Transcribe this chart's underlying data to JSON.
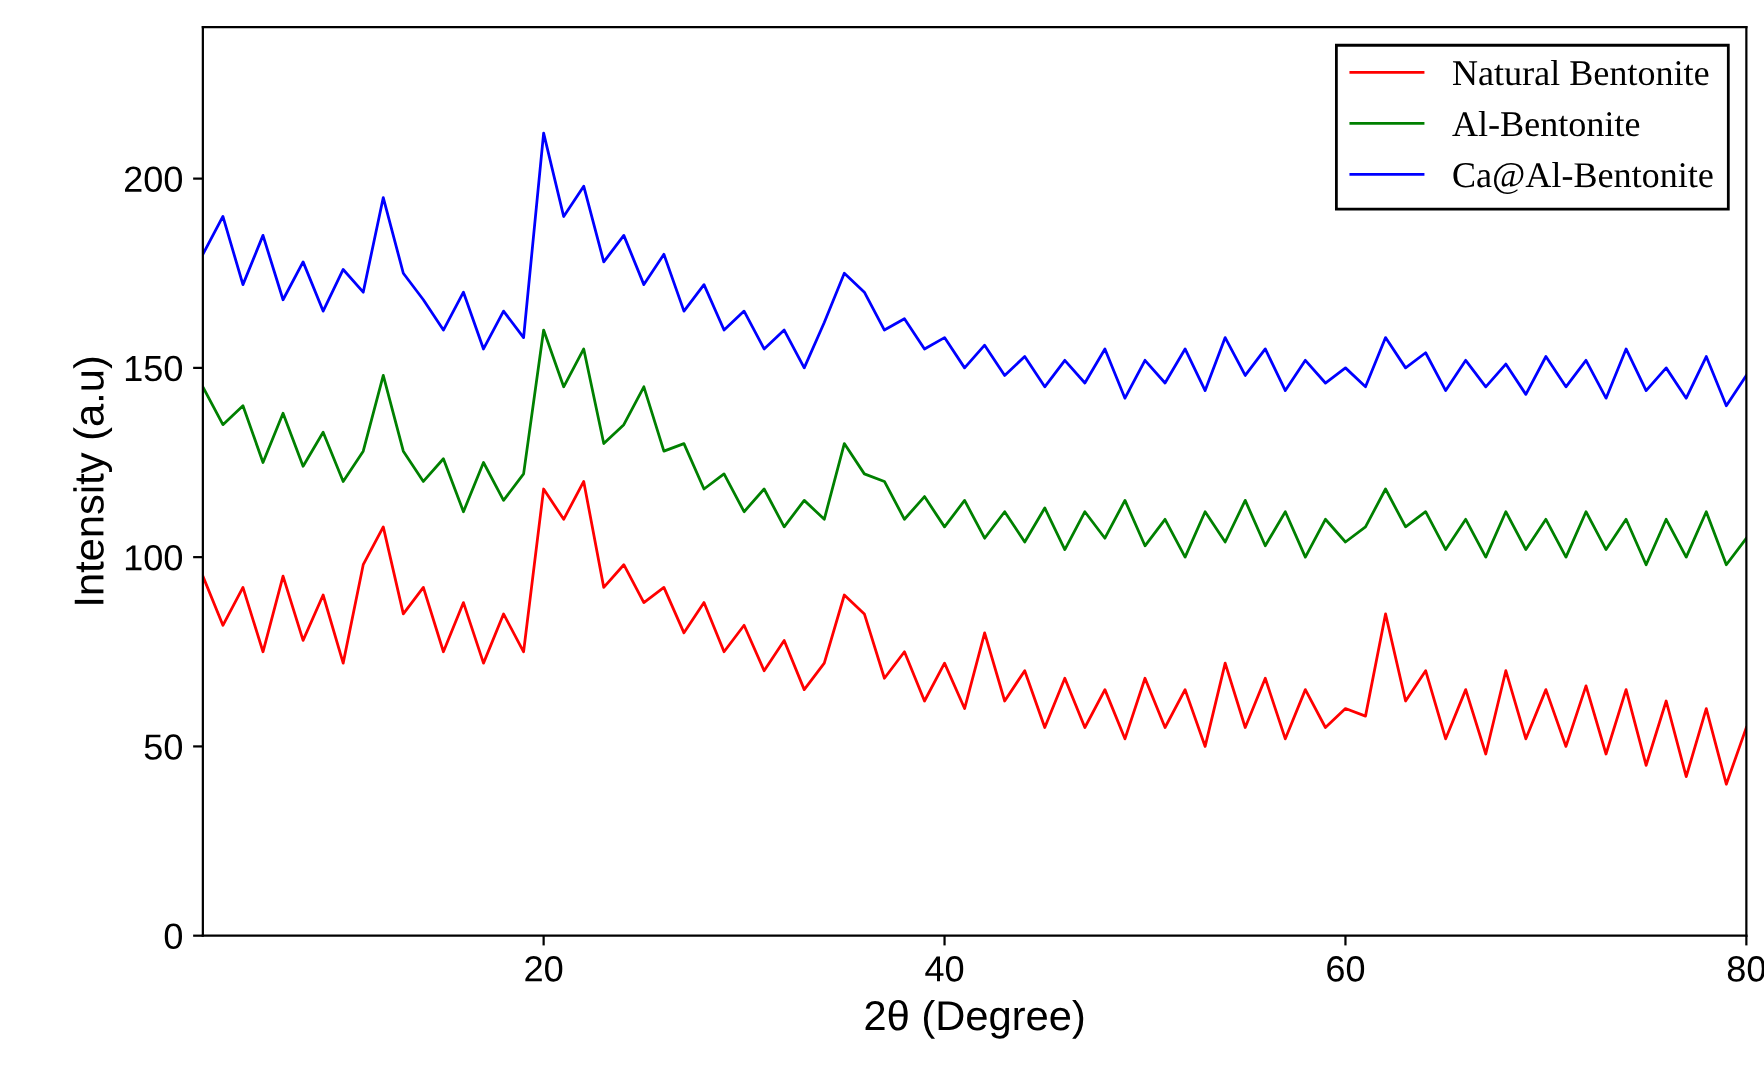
{
  "chart_data": {
    "type": "line",
    "xlabel": "2θ (Degree)",
    "ylabel": "Intensity (a.u)",
    "x": [
      3,
      4,
      5,
      6,
      7,
      8,
      9,
      10,
      11,
      12,
      13,
      14,
      15,
      16,
      17,
      18,
      19,
      20,
      21,
      22,
      23,
      24,
      25,
      26,
      27,
      28,
      29,
      30,
      31,
      32,
      33,
      34,
      35,
      36,
      37,
      38,
      39,
      40,
      41,
      42,
      43,
      44,
      45,
      46,
      47,
      48,
      49,
      50,
      51,
      52,
      53,
      54,
      55,
      56,
      57,
      58,
      59,
      60,
      61,
      62,
      63,
      64,
      65,
      66,
      67,
      68,
      69,
      70,
      71,
      72,
      73,
      74,
      75,
      76,
      77,
      78,
      79,
      80
    ],
    "series": [
      {
        "name": "Natural Bentonite",
        "color": "#ff0000",
        "values": [
          95,
          82,
          92,
          75,
          95,
          78,
          90,
          72,
          98,
          108,
          85,
          92,
          75,
          88,
          72,
          85,
          75,
          118,
          110,
          120,
          92,
          98,
          88,
          92,
          80,
          88,
          75,
          82,
          70,
          78,
          65,
          72,
          90,
          85,
          68,
          75,
          62,
          72,
          60,
          80,
          62,
          70,
          55,
          68,
          55,
          65,
          52,
          68,
          55,
          65,
          50,
          72,
          55,
          68,
          52,
          65,
          55,
          60,
          58,
          85,
          62,
          70,
          52,
          65,
          48,
          70,
          52,
          65,
          50,
          66,
          48,
          65,
          45,
          62,
          42,
          60,
          40,
          55
        ]
      },
      {
        "name": "Al-Bentonite",
        "color": "#008000",
        "values": [
          145,
          135,
          140,
          125,
          138,
          124,
          133,
          120,
          128,
          148,
          128,
          120,
          126,
          112,
          125,
          115,
          122,
          160,
          145,
          155,
          130,
          135,
          145,
          128,
          130,
          118,
          122,
          112,
          118,
          108,
          115,
          110,
          130,
          122,
          120,
          110,
          116,
          108,
          115,
          105,
          112,
          104,
          113,
          102,
          112,
          105,
          115,
          103,
          110,
          100,
          112,
          104,
          115,
          103,
          112,
          100,
          110,
          104,
          108,
          118,
          108,
          112,
          102,
          110,
          100,
          112,
          102,
          110,
          100,
          112,
          102,
          110,
          98,
          110,
          100,
          112,
          98,
          105
        ]
      },
      {
        "name": "Ca@Al-Bentonite",
        "color": "#0000ff",
        "values": [
          180,
          190,
          172,
          185,
          168,
          178,
          165,
          176,
          170,
          195,
          175,
          168,
          160,
          170,
          155,
          165,
          158,
          212,
          190,
          198,
          178,
          185,
          172,
          180,
          165,
          172,
          160,
          165,
          155,
          160,
          150,
          162,
          175,
          170,
          160,
          163,
          155,
          158,
          150,
          156,
          148,
          153,
          145,
          152,
          146,
          155,
          142,
          152,
          146,
          155,
          144,
          158,
          148,
          155,
          144,
          152,
          146,
          150,
          145,
          158,
          150,
          154,
          144,
          152,
          145,
          151,
          143,
          153,
          145,
          152,
          142,
          155,
          144,
          150,
          142,
          153,
          140,
          148
        ]
      }
    ],
    "xlim": [
      3,
      80
    ],
    "xticks": [
      20,
      40,
      60,
      80
    ],
    "ylim": [
      0,
      240
    ],
    "yticks": [
      0,
      50,
      100,
      150,
      200
    ],
    "grid": false,
    "legend": "top right",
    "marker": "none",
    "line_style": "solid"
  }
}
